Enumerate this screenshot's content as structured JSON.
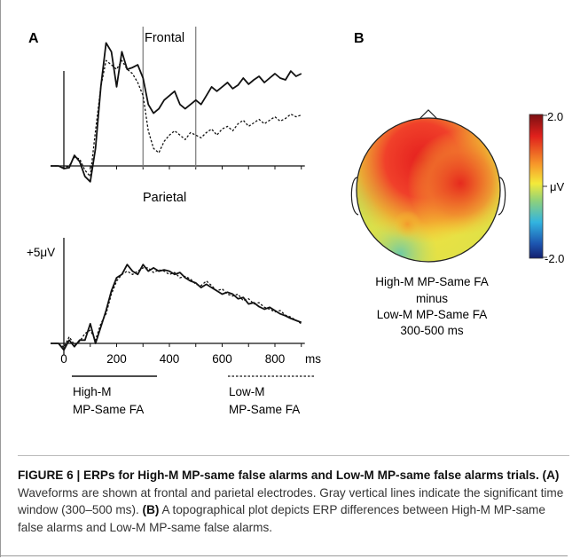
{
  "panel_a": {
    "label": "A",
    "frontal_label": "Frontal",
    "parietal_label": "Parietal",
    "scale_label": "+5μV",
    "x_ticks": [
      "0",
      "200",
      "400",
      "600",
      "800"
    ],
    "x_unit": "ms",
    "legend": [
      {
        "line1": "High-M",
        "line2": "MP-Same FA",
        "style": "solid"
      },
      {
        "line1": "Low-M",
        "line2": "MP-Same FA",
        "style": "dashed"
      }
    ]
  },
  "panel_b": {
    "label": "B",
    "colorbar_max": "2.0",
    "colorbar_mid": "μV",
    "colorbar_min": "-2.0",
    "caption_lines": [
      "High-M MP-Same FA",
      "minus",
      "Low-M MP-Same FA",
      "300-500 ms"
    ]
  },
  "caption": {
    "figure_label": "FIGURE 6 | ERPs for High-M MP-same false alarms and Low-M MP-same false alarms trials.",
    "part_a_label": "(A)",
    "part_a_text": " Waveforms are shown at frontal and parietal electrodes. Gray vertical lines indicate the significant time window (300–500 ms).",
    "part_b_label": "(B)",
    "part_b_text": " A topographical plot depicts ERP differences between High-M MP-same false alarms and Low-M MP-same false alarms."
  },
  "chart_data": {
    "type": "line",
    "x_unit": "ms",
    "xlim": [
      -50,
      920
    ],
    "x_ticks": [
      0,
      200,
      400,
      600,
      800
    ],
    "time_window_ms": [
      300,
      500
    ],
    "plots": [
      {
        "name": "Frontal",
        "series": [
          {
            "name": "High-M MP-Same FA",
            "style": "solid",
            "x": [
              -50,
              -20,
              0,
              20,
              40,
              60,
              80,
              100,
              120,
              140,
              160,
              180,
              200,
              220,
              240,
              260,
              280,
              300,
              320,
              340,
              360,
              380,
              400,
              420,
              440,
              460,
              480,
              500,
              520,
              540,
              560,
              580,
              600,
              620,
              640,
              660,
              680,
              700,
              720,
              740,
              760,
              780,
              800,
              820,
              840,
              860,
              880,
              900
            ],
            "y": [
              0,
              0,
              -0.3,
              -0.2,
              1.2,
              0.5,
              -1.2,
              -1.8,
              2,
              9,
              14,
              13,
              9,
              13,
              11,
              11.2,
              11.5,
              10,
              7,
              6,
              6.5,
              7.5,
              8,
              8.5,
              7,
              6.5,
              7,
              7.5,
              7,
              8,
              9,
              8.5,
              9,
              9.5,
              8.8,
              9.2,
              10,
              9.3,
              9.8,
              10.2,
              9.5,
              10,
              10.5,
              10,
              9.8,
              10.8,
              10.2,
              10.5
            ]
          },
          {
            "name": "Low-M MP-Same FA",
            "style": "dashed",
            "x": [
              -50,
              -20,
              0,
              20,
              40,
              60,
              80,
              100,
              120,
              140,
              160,
              180,
              200,
              220,
              240,
              260,
              280,
              300,
              320,
              340,
              360,
              380,
              400,
              420,
              440,
              460,
              480,
              500,
              520,
              540,
              560,
              580,
              600,
              620,
              640,
              660,
              680,
              700,
              720,
              740,
              760,
              780,
              800,
              820,
              840,
              860,
              880,
              900
            ],
            "y": [
              0,
              0,
              -0.2,
              0,
              1,
              0.8,
              -0.5,
              -1.2,
              4,
              9,
              12,
              11.5,
              11,
              12,
              11,
              10.5,
              9.5,
              8,
              4,
              2,
              1.5,
              2.8,
              3.5,
              4,
              3.5,
              3,
              3.8,
              3.5,
              3.2,
              3.8,
              4.2,
              3.5,
              4.2,
              4.5,
              4,
              4.8,
              5.2,
              4.5,
              4.9,
              5.3,
              4.8,
              5.2,
              5.6,
              5.1,
              5.4,
              5.9,
              5.6,
              5.8
            ]
          }
        ]
      },
      {
        "name": "Parietal",
        "series": [
          {
            "name": "High-M MP-Same FA",
            "style": "solid",
            "x": [
              -50,
              -20,
              0,
              20,
              40,
              60,
              80,
              100,
              120,
              140,
              160,
              180,
              200,
              220,
              240,
              260,
              280,
              300,
              320,
              340,
              360,
              380,
              400,
              420,
              440,
              460,
              480,
              500,
              520,
              540,
              560,
              580,
              600,
              620,
              640,
              660,
              680,
              700,
              720,
              740,
              760,
              780,
              800,
              820,
              840,
              860,
              880,
              900
            ],
            "y": [
              0,
              0,
              -1,
              0.5,
              -0.5,
              0.5,
              0.5,
              3,
              0,
              2.5,
              5,
              8,
              10,
              10.5,
              12,
              11,
              10.5,
              12,
              11,
              11.5,
              11,
              11.2,
              11,
              10.5,
              10.8,
              10,
              9.5,
              9.2,
              8.5,
              9,
              8.5,
              8,
              7.5,
              7.8,
              7.5,
              6.8,
              7,
              6,
              6.2,
              5.6,
              5.2,
              5.5,
              5,
              4.5,
              4.2,
              3.8,
              3.5,
              3.2
            ]
          },
          {
            "name": "Low-M MP-Same FA",
            "style": "dashed",
            "x": [
              -50,
              -20,
              0,
              20,
              40,
              60,
              80,
              100,
              120,
              140,
              160,
              180,
              200,
              220,
              240,
              260,
              280,
              300,
              320,
              340,
              360,
              380,
              400,
              420,
              440,
              460,
              480,
              500,
              520,
              540,
              560,
              580,
              600,
              620,
              640,
              660,
              680,
              700,
              720,
              740,
              760,
              780,
              800,
              820,
              840,
              860,
              880,
              900
            ],
            "y": [
              0,
              0,
              -0.6,
              1,
              -0.2,
              0.3,
              1.5,
              2,
              0.5,
              3,
              4.5,
              7.5,
              9.5,
              10.5,
              11,
              10.5,
              11,
              11.5,
              11.5,
              10.8,
              11.2,
              11,
              10.5,
              10.8,
              10,
              10.2,
              9.8,
              9,
              8.8,
              9.5,
              8.8,
              8,
              8.3,
              7.5,
              7.2,
              7.5,
              6.5,
              6.8,
              6,
              6.2,
              5.5,
              5.2,
              4.8,
              5,
              4.3,
              4,
              3.5,
              3
            ]
          }
        ]
      }
    ]
  }
}
